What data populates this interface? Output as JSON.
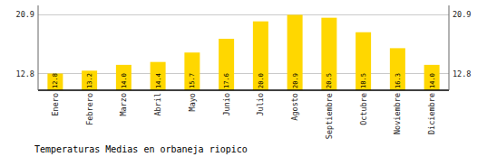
{
  "chart_data": {
    "type": "bar",
    "title": "Temperaturas Medias en orbaneja riopico",
    "categories": [
      "Enero",
      "Febrero",
      "Marzo",
      "Abril",
      "Mayo",
      "Junio",
      "Julio",
      "Agosto",
      "Septiembre",
      "Octubre",
      "Noviembre",
      "Diciembre"
    ],
    "values": [
      12.8,
      13.2,
      14.0,
      14.4,
      15.7,
      17.6,
      20.0,
      20.9,
      20.5,
      18.5,
      16.3,
      14.0
    ],
    "value_labels": [
      "12.8",
      "13.2",
      "14.0",
      "14.4",
      "15.7",
      "17.6",
      "20.0",
      "20.9",
      "20.5",
      "18.5",
      "16.3",
      "14.0"
    ],
    "data_labels": true,
    "color": "#FFD700",
    "ylim": [
      10.5,
      22.2
    ],
    "yticks": [
      12.8,
      20.9
    ],
    "y2lim": [
      10.5,
      22.2
    ],
    "y2ticks": [
      12.8,
      20.9
    ],
    "grid": true
  }
}
